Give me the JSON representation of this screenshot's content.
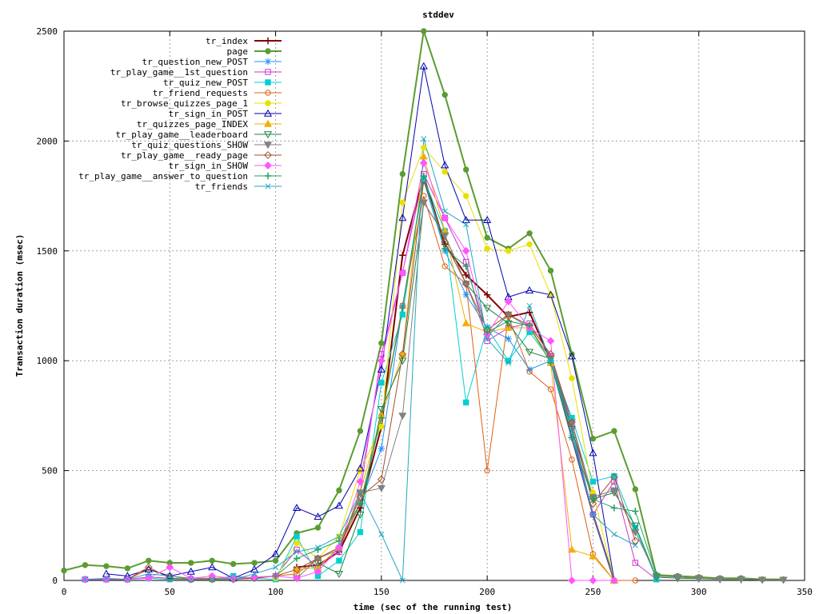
{
  "chart_data": {
    "type": "line",
    "title": "stddev",
    "xlabel": "time (sec of the running test)",
    "ylabel": "Transaction duration (msec)",
    "xlim": [
      0,
      350
    ],
    "ylim": [
      0,
      2500
    ],
    "xticks": [
      0,
      50,
      100,
      150,
      200,
      250,
      300,
      350
    ],
    "yticks": [
      0,
      500,
      1000,
      1500,
      2000,
      2500
    ],
    "grid": true,
    "legend_position": "top-left",
    "series": [
      {
        "name": "tr_index",
        "color": "#800000",
        "marker": "plus",
        "x": [
          110,
          120,
          130,
          140,
          150,
          160,
          170,
          180,
          190,
          200,
          210,
          220,
          230,
          240,
          250,
          260
        ],
        "y": [
          60,
          70,
          130,
          330,
          700,
          1480,
          1840,
          1530,
          1390,
          1300,
          1200,
          1220,
          1000,
          650,
          300,
          0
        ]
      },
      {
        "name": "page",
        "color": "#5a9c32",
        "marker": "filled-circle",
        "x": [
          0,
          10,
          20,
          30,
          40,
          50,
          60,
          70,
          80,
          90,
          100,
          110,
          120,
          130,
          140,
          150,
          160,
          170,
          180,
          190,
          200,
          210,
          220,
          230,
          240,
          250,
          260,
          270,
          280,
          290,
          300,
          310,
          320,
          330,
          340
        ],
        "y": [
          45,
          70,
          65,
          55,
          90,
          80,
          80,
          90,
          75,
          80,
          90,
          215,
          240,
          410,
          680,
          1080,
          1850,
          2500,
          2210,
          1870,
          1560,
          1510,
          1580,
          1410,
          1030,
          645,
          680,
          415,
          25,
          20,
          15,
          10,
          10,
          5,
          5
        ]
      },
      {
        "name": "tr_question_new_POST",
        "color": "#1e90ff",
        "marker": "star",
        "x": [
          110,
          120,
          130,
          140,
          150,
          160,
          170,
          180,
          190,
          200,
          210,
          220,
          230,
          240,
          250,
          260
        ],
        "y": [
          50,
          60,
          150,
          350,
          600,
          1250,
          1820,
          1500,
          1300,
          1150,
          1100,
          960,
          1000,
          650,
          300,
          0
        ]
      },
      {
        "name": "tr_play_game__1st_question",
        "color": "#cc33cc",
        "marker": "open-square",
        "x": [
          10,
          20,
          30,
          40,
          50,
          60,
          70,
          80,
          90,
          100,
          110,
          120,
          130,
          140,
          150,
          160,
          170,
          180,
          190,
          200,
          210,
          220,
          230,
          240,
          250,
          260,
          270,
          280
        ],
        "y": [
          5,
          5,
          5,
          15,
          10,
          5,
          10,
          10,
          10,
          20,
          140,
          60,
          130,
          400,
          1030,
          1400,
          1850,
          1650,
          1450,
          1090,
          1150,
          1170,
          1020,
          700,
          300,
          450,
          80,
          5
        ]
      },
      {
        "name": "tr_quiz_new_POST",
        "color": "#00d0d0",
        "marker": "filled-square",
        "x": [
          10,
          20,
          30,
          40,
          50,
          60,
          70,
          80,
          90,
          100,
          110,
          120,
          130,
          140,
          150,
          160,
          170,
          180,
          190,
          200,
          210,
          220,
          230,
          240,
          250,
          260,
          270,
          280
        ],
        "y": [
          5,
          5,
          5,
          10,
          5,
          5,
          5,
          20,
          10,
          5,
          200,
          20,
          90,
          220,
          900,
          1210,
          1830,
          1590,
          810,
          1150,
          1000,
          1130,
          1000,
          740,
          450,
          475,
          240,
          5
        ]
      },
      {
        "name": "tr_friend_requests",
        "color": "#e06010",
        "marker": "open-circle",
        "x": [
          10,
          20,
          30,
          40,
          50,
          60,
          70,
          80,
          90,
          100,
          110,
          120,
          130,
          140,
          150,
          160,
          170,
          180,
          190,
          200,
          210,
          220,
          230,
          240,
          250,
          260,
          270
        ],
        "y": [
          5,
          5,
          5,
          50,
          20,
          10,
          10,
          10,
          15,
          20,
          30,
          100,
          150,
          350,
          750,
          1250,
          1750,
          1430,
          1350,
          500,
          1200,
          950,
          870,
          550,
          120,
          0,
          0
        ]
      },
      {
        "name": "tr_browse_quizzes_page_1",
        "color": "#e8e000",
        "marker": "filled-circle",
        "x": [
          100,
          110,
          120,
          130,
          140,
          150,
          160,
          170,
          180,
          190,
          200,
          210,
          220,
          230,
          240,
          250,
          260
        ],
        "y": [
          10,
          170,
          100,
          200,
          500,
          700,
          1720,
          1970,
          1860,
          1750,
          1510,
          1500,
          1530,
          1300,
          920,
          400,
          0
        ]
      },
      {
        "name": "tr_sign_in_POST",
        "color": "#0000b0",
        "marker": "open-triangle",
        "x": [
          20,
          30,
          40,
          50,
          60,
          70,
          80,
          90,
          100,
          110,
          120,
          130,
          140,
          150,
          160,
          170,
          180,
          190,
          200,
          210,
          220,
          230,
          240,
          250,
          260
        ],
        "y": [
          30,
          20,
          50,
          20,
          40,
          60,
          10,
          50,
          120,
          330,
          290,
          340,
          510,
          960,
          1650,
          2340,
          1890,
          1640,
          1640,
          1290,
          1320,
          1300,
          1020,
          580,
          0
        ]
      },
      {
        "name": "tr_quizzes_page_INDEX",
        "color": "#f0b000",
        "marker": "filled-triangle",
        "x": [
          110,
          120,
          130,
          140,
          150,
          160,
          170,
          180,
          190,
          200,
          210,
          220,
          230,
          240,
          250,
          260
        ],
        "y": [
          50,
          60,
          150,
          400,
          750,
          1030,
          1930,
          1590,
          1170,
          1130,
          1150,
          1150,
          990,
          140,
          110,
          0
        ]
      },
      {
        "name": "tr_play_game__leaderboard",
        "color": "#208040",
        "marker": "open-inverted-triangle",
        "x": [
          120,
          130,
          140,
          150,
          160,
          170,
          180,
          190,
          200,
          210,
          220,
          230,
          240,
          250,
          260,
          270,
          280,
          290,
          300,
          310,
          320,
          330,
          340
        ],
        "y": [
          80,
          30,
          300,
          780,
          1000,
          1720,
          1570,
          1350,
          1240,
          1170,
          1040,
          1010,
          690,
          370,
          400,
          250,
          15,
          10,
          8,
          5,
          5,
          3,
          3
        ]
      },
      {
        "name": "tr_quiz_questions_SHOW",
        "color": "#808080",
        "marker": "filled-inverted-triangle",
        "x": [
          110,
          120,
          130,
          140,
          150,
          160,
          170,
          180,
          190,
          200,
          210,
          220,
          230,
          240,
          250,
          260,
          270,
          280,
          290,
          300,
          310,
          320,
          330,
          340
        ],
        "y": [
          10,
          100,
          140,
          400,
          420,
          750,
          1720,
          1570,
          1350,
          1110,
          1210,
          1150,
          1010,
          720,
          380,
          410,
          220,
          20,
          15,
          10,
          5,
          5,
          3,
          3
        ]
      },
      {
        "name": "tr_play_game__ready_page",
        "color": "#a05030",
        "marker": "open-diamond",
        "x": [
          10,
          20,
          30,
          40,
          50,
          60,
          70,
          80,
          90,
          100,
          110,
          120,
          130,
          140,
          150,
          160,
          170,
          180,
          190,
          200,
          210,
          220,
          230,
          240,
          250,
          260,
          270
        ],
        "y": [
          5,
          5,
          5,
          60,
          10,
          5,
          5,
          5,
          10,
          20,
          50,
          100,
          150,
          380,
          460,
          1030,
          1820,
          1540,
          1350,
          1140,
          1210,
          1160,
          1030,
          720,
          350,
          470,
          180
        ]
      },
      {
        "name": "tr_sign_in_SHOW",
        "color": "#ff55ff",
        "marker": "filled-diamond",
        "x": [
          10,
          20,
          30,
          40,
          50,
          60,
          70,
          80,
          90,
          100,
          110,
          120,
          130,
          140,
          150,
          160,
          170,
          180,
          190,
          200,
          210,
          220,
          230,
          240,
          250,
          260
        ],
        "y": [
          5,
          5,
          5,
          10,
          60,
          10,
          20,
          10,
          15,
          20,
          10,
          40,
          150,
          450,
          1000,
          1400,
          1900,
          1650,
          1500,
          1120,
          1270,
          1150,
          1090,
          0,
          0,
          0
        ]
      },
      {
        "name": "tr_play_game__answer_to_question",
        "color": "#20a060",
        "marker": "plus",
        "x": [
          100,
          110,
          120,
          130,
          140,
          150,
          160,
          170,
          180,
          190,
          200,
          210,
          220,
          230,
          240,
          250,
          260,
          270,
          280
        ],
        "y": [
          20,
          100,
          140,
          180,
          350,
          740,
          1240,
          1840,
          1510,
          1430,
          1130,
          1180,
          1160,
          990,
          650,
          370,
          330,
          315,
          25
        ]
      },
      {
        "name": "tr_friends",
        "color": "#20a8c0",
        "marker": "cross",
        "x": [
          10,
          20,
          30,
          40,
          50,
          60,
          70,
          80,
          90,
          100,
          110,
          120,
          130,
          140,
          150,
          160,
          170,
          180,
          190,
          200,
          210,
          220,
          230,
          240,
          250,
          260,
          270
        ],
        "y": [
          5,
          10,
          5,
          30,
          20,
          5,
          5,
          5,
          30,
          60,
          130,
          150,
          200,
          400,
          210,
          0,
          2010,
          1680,
          1620,
          1100,
          990,
          1250,
          1000,
          680,
          300,
          210,
          160
        ]
      }
    ]
  }
}
